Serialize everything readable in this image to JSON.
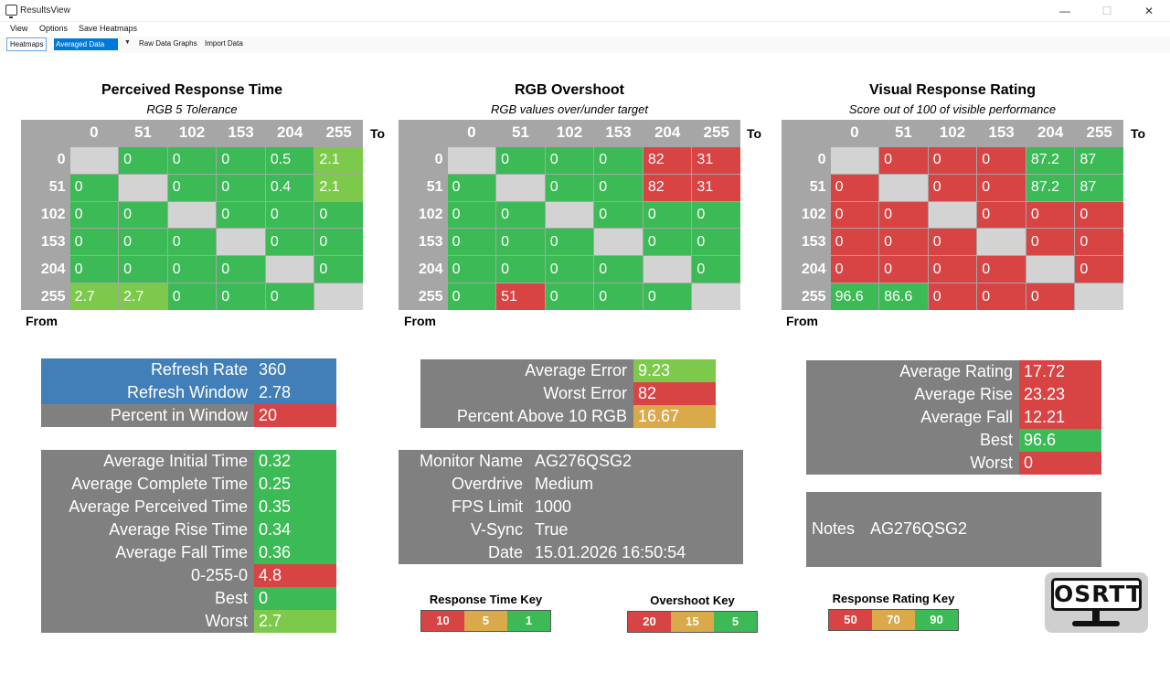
{
  "window": {
    "title": "ResultsView",
    "minimize": "—",
    "maximize": "☐",
    "close": "✕"
  },
  "menu": {
    "items": [
      "View",
      "Options",
      "Save Heatmaps"
    ]
  },
  "toolbar": {
    "heatmaps": "Heatmaps",
    "selected_view": "Averaged Data",
    "raw_graphs": "Raw Data Graphs",
    "import": "Import Data"
  },
  "axis": {
    "to": "To",
    "from": "From"
  },
  "heatmaps": [
    {
      "title": "Perceived Response Time",
      "subtitle": "RGB 5 Tolerance",
      "levels": [
        "0",
        "51",
        "102",
        "153",
        "204",
        "255"
      ],
      "cells": [
        [
          null,
          "0",
          "0",
          "0",
          "0.5",
          "2.1"
        ],
        [
          "0",
          null,
          "0",
          "0",
          "0.4",
          "2.1"
        ],
        [
          "0",
          "0",
          null,
          "0",
          "0",
          "0"
        ],
        [
          "0",
          "0",
          "0",
          null,
          "0",
          "0"
        ],
        [
          "0",
          "0",
          "0",
          "0",
          null,
          "0"
        ],
        [
          "2.7",
          "2.7",
          "0",
          "0",
          "0",
          null
        ]
      ],
      "colors": [
        [
          "gray",
          "green",
          "green",
          "green",
          "green",
          "lime"
        ],
        [
          "green",
          "gray",
          "green",
          "green",
          "green",
          "lime"
        ],
        [
          "green",
          "green",
          "gray",
          "green",
          "green",
          "green"
        ],
        [
          "green",
          "green",
          "green",
          "gray",
          "green",
          "green"
        ],
        [
          "green",
          "green",
          "green",
          "green",
          "gray",
          "green"
        ],
        [
          "lime",
          "lime",
          "green",
          "green",
          "green",
          "gray"
        ]
      ]
    },
    {
      "title": "RGB Overshoot",
      "subtitle": "RGB values over/under target",
      "levels": [
        "0",
        "51",
        "102",
        "153",
        "204",
        "255"
      ],
      "cells": [
        [
          null,
          "0",
          "0",
          "0",
          "82",
          "31"
        ],
        [
          "0",
          null,
          "0",
          "0",
          "82",
          "31"
        ],
        [
          "0",
          "0",
          null,
          "0",
          "0",
          "0"
        ],
        [
          "0",
          "0",
          "0",
          null,
          "0",
          "0"
        ],
        [
          "0",
          "0",
          "0",
          "0",
          null,
          "0"
        ],
        [
          "0",
          "51",
          "0",
          "0",
          "0",
          null
        ]
      ],
      "colors": [
        [
          "gray",
          "green",
          "green",
          "green",
          "red",
          "red"
        ],
        [
          "green",
          "gray",
          "green",
          "green",
          "red",
          "red"
        ],
        [
          "green",
          "green",
          "gray",
          "green",
          "green",
          "green"
        ],
        [
          "green",
          "green",
          "green",
          "gray",
          "green",
          "green"
        ],
        [
          "green",
          "green",
          "green",
          "green",
          "gray",
          "green"
        ],
        [
          "green",
          "red",
          "green",
          "green",
          "green",
          "gray"
        ]
      ]
    },
    {
      "title": "Visual Response Rating",
      "subtitle": "Score out of 100 of visible performance",
      "levels": [
        "0",
        "51",
        "102",
        "153",
        "204",
        "255"
      ],
      "cells": [
        [
          null,
          "0",
          "0",
          "0",
          "87.2",
          "87"
        ],
        [
          "0",
          null,
          "0",
          "0",
          "87.2",
          "87"
        ],
        [
          "0",
          "0",
          null,
          "0",
          "0",
          "0"
        ],
        [
          "0",
          "0",
          "0",
          null,
          "0",
          "0"
        ],
        [
          "0",
          "0",
          "0",
          "0",
          null,
          "0"
        ],
        [
          "96.6",
          "86.6",
          "0",
          "0",
          "0",
          null
        ]
      ],
      "colors": [
        [
          "gray",
          "red",
          "red",
          "red",
          "green",
          "green"
        ],
        [
          "red",
          "gray",
          "red",
          "red",
          "green",
          "green"
        ],
        [
          "red",
          "red",
          "gray",
          "red",
          "red",
          "red"
        ],
        [
          "red",
          "red",
          "red",
          "gray",
          "red",
          "red"
        ],
        [
          "red",
          "red",
          "red",
          "red",
          "gray",
          "red"
        ],
        [
          "green",
          "green",
          "red",
          "red",
          "red",
          "gray"
        ]
      ]
    }
  ],
  "refresh_box": [
    {
      "label": "Refresh Rate",
      "value": "360",
      "label_color": "blue",
      "value_color": "blue"
    },
    {
      "label": "Refresh Window",
      "value": "2.78",
      "label_color": "blue",
      "value_color": "blue"
    },
    {
      "label": "Percent in Window",
      "value": "20",
      "label_color": "dgray",
      "value_color": "red"
    }
  ],
  "error_box": [
    {
      "label": "Average Error",
      "value": "9.23",
      "value_color": "lime"
    },
    {
      "label": "Worst Error",
      "value": "82",
      "value_color": "red"
    },
    {
      "label": "Percent Above 10 RGB",
      "value": "16.67",
      "value_color": "amber"
    }
  ],
  "rating_box": [
    {
      "label": "Average Rating",
      "value": "17.72",
      "value_color": "red"
    },
    {
      "label": "Average Rise",
      "value": "23.23",
      "value_color": "red"
    },
    {
      "label": "Average Fall",
      "value": "12.21",
      "value_color": "red"
    },
    {
      "label": "Best",
      "value": "96.6",
      "value_color": "green"
    },
    {
      "label": "Worst",
      "value": "0",
      "value_color": "red"
    }
  ],
  "time_box": [
    {
      "label": "Average Initial Time",
      "value": "0.32",
      "value_color": "green"
    },
    {
      "label": "Average Complete Time",
      "value": "0.25",
      "value_color": "green"
    },
    {
      "label": "Average Perceived Time",
      "value": "0.35",
      "value_color": "green"
    },
    {
      "label": "Average Rise Time",
      "value": "0.34",
      "value_color": "green"
    },
    {
      "label": "Average Fall Time",
      "value": "0.36",
      "value_color": "green"
    },
    {
      "label": "0-255-0",
      "value": "4.8",
      "value_color": "red"
    },
    {
      "label": "Best",
      "value": "0",
      "value_color": "green"
    },
    {
      "label": "Worst",
      "value": "2.7",
      "value_color": "lime"
    }
  ],
  "monitor_box": [
    {
      "label": "Monitor Name",
      "value": "AG276QSG2"
    },
    {
      "label": "Overdrive",
      "value": "Medium"
    },
    {
      "label": "FPS Limit",
      "value": "1000"
    },
    {
      "label": "V-Sync",
      "value": "True"
    },
    {
      "label": "Date",
      "value": "15.01.2026 16:50:54"
    }
  ],
  "notes": {
    "label": "Notes",
    "value": "AG276QSG2"
  },
  "keys": [
    {
      "title": "Response Time Key",
      "cells": [
        {
          "text": "10",
          "color": "red"
        },
        {
          "text": "5",
          "color": "amber"
        },
        {
          "text": "1",
          "color": "green"
        }
      ]
    },
    {
      "title": "Overshoot Key",
      "cells": [
        {
          "text": "20",
          "color": "red"
        },
        {
          "text": "15",
          "color": "amber"
        },
        {
          "text": "5",
          "color": "green"
        }
      ]
    },
    {
      "title": "Response Rating Key",
      "cells": [
        {
          "text": "50",
          "color": "red"
        },
        {
          "text": "70",
          "color": "amber"
        },
        {
          "text": "90",
          "color": "green"
        }
      ]
    }
  ],
  "logo": {
    "text": "OSRTT"
  },
  "colors": {
    "green": "#3bba55",
    "lime": "#7cc94b",
    "red": "#d84343",
    "amber": "#d9a94a",
    "gray": "#d3d3d3",
    "blue": "#427fb8",
    "dgray": "#808080"
  }
}
